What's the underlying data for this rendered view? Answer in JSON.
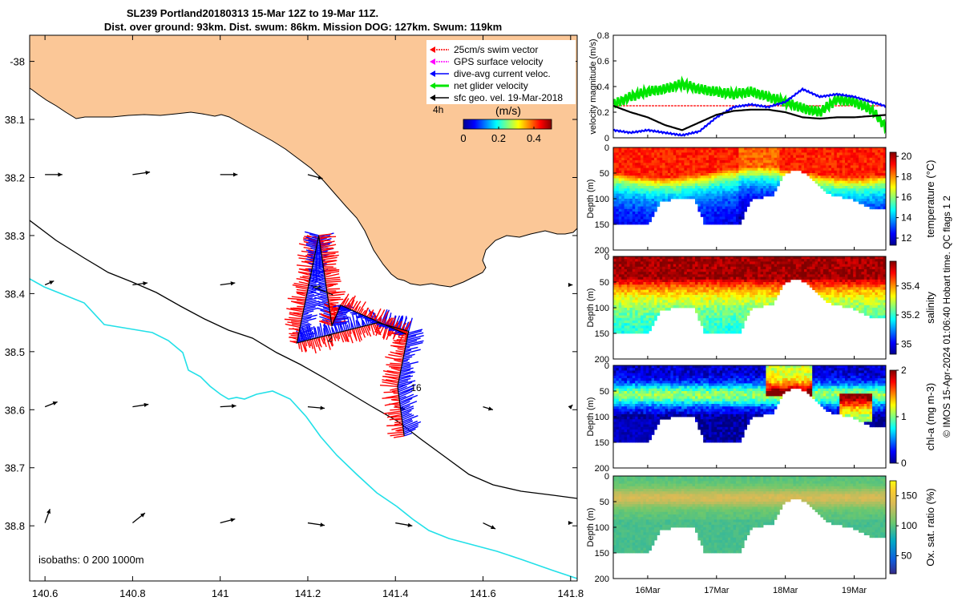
{
  "header": {
    "title_line1": "SL239 Portland20180313 15-Mar 12Z to 19-Mar 11Z.",
    "title_line2": "Dist. over ground: 93km. Dist. swum: 86km. Mission DOG: 127km. Swum: 119km"
  },
  "credit": "© IMOS 15-Apr-2024 01:06:40 Hobart time. QC flags 1  2",
  "colors": {
    "land": "#fbc797",
    "isobath_200": "#000000",
    "isobath_1000": "#22e0e8",
    "swim_vector": "#ff0000",
    "gps_surface": "#ff00ff",
    "dive_avg": "#0000ff",
    "net_glider": "#00e600",
    "sfc_geo": "#000000"
  },
  "chart_data": [
    {
      "type": "map",
      "xlabel_ticks": [
        "140.6",
        "140.8",
        "141",
        "141.2",
        "141.4",
        "141.6",
        "141.8"
      ],
      "ylabel_ticks": [
        "-38",
        "38.1",
        "38.2",
        "38.3",
        "38.4",
        "38.5",
        "38.6",
        "38.7",
        "38.8"
      ],
      "xlim": [
        140.565,
        141.815
      ],
      "ylim": [
        -38.895,
        -37.955
      ],
      "legend": [
        {
          "label": "25cm/s swim vector",
          "color": "#ff0000"
        },
        {
          "label": "GPS surface velocity",
          "color": "#ff00ff"
        },
        {
          "label": "dive-avg current veloc.",
          "color": "#0000ff"
        },
        {
          "label": "net glider velocity",
          "color": "#00e600"
        },
        {
          "label": "sfc geo. vel. 19-Mar-2018",
          "color": "#000000"
        }
      ],
      "legend_placement": "top-right",
      "colorbar": {
        "label": "(m/s)",
        "ticks": [
          "0",
          "0.2",
          "0.4"
        ],
        "range": [
          0,
          0.5
        ],
        "note": "4h"
      },
      "annotations": [
        {
          "text": "2",
          "lon": 141.245,
          "lat": -38.483
        },
        {
          "text": "16",
          "lon": 141.435,
          "lat": -38.568
        }
      ],
      "isobaths_label": "isobaths: 0   200  1000m",
      "glider_track": [
        [
          141.42,
          -38.645
        ],
        [
          141.405,
          -38.56
        ],
        [
          141.43,
          -38.465
        ],
        [
          141.36,
          -38.45
        ],
        [
          141.175,
          -38.485
        ],
        [
          141.225,
          -38.3
        ],
        [
          141.255,
          -38.455
        ],
        [
          141.275,
          -38.42
        ],
        [
          141.35,
          -38.445
        ],
        [
          141.425,
          -38.47
        ]
      ],
      "current_arrows": [
        {
          "lon": 140.6,
          "lat": -38.195,
          "u": 0.035,
          "v": 0.0
        },
        {
          "lon": 140.8,
          "lat": -38.195,
          "u": 0.035,
          "v": 0.005
        },
        {
          "lon": 141.0,
          "lat": -38.195,
          "u": 0.035,
          "v": 0.0
        },
        {
          "lon": 141.2,
          "lat": -38.195,
          "u": 0.03,
          "v": -0.008
        },
        {
          "lon": 140.6,
          "lat": -38.385,
          "u": 0.018,
          "v": 0.008
        },
        {
          "lon": 140.8,
          "lat": -38.385,
          "u": 0.03,
          "v": 0.004
        },
        {
          "lon": 141.0,
          "lat": -38.385,
          "u": 0.03,
          "v": 0.004
        },
        {
          "lon": 141.2,
          "lat": -38.385,
          "u": 0.03,
          "v": -0.006
        },
        {
          "lon": 141.8,
          "lat": -38.385,
          "u": 0.004,
          "v": 0.0
        },
        {
          "lon": 140.6,
          "lat": -38.595,
          "u": 0.025,
          "v": 0.01
        },
        {
          "lon": 140.8,
          "lat": -38.595,
          "u": 0.032,
          "v": 0.005
        },
        {
          "lon": 141.0,
          "lat": -38.595,
          "u": 0.032,
          "v": 0.002
        },
        {
          "lon": 141.2,
          "lat": -38.595,
          "u": 0.034,
          "v": -0.003
        },
        {
          "lon": 141.4,
          "lat": -38.595,
          "u": 0.02,
          "v": -0.005
        },
        {
          "lon": 141.6,
          "lat": -38.595,
          "u": 0.02,
          "v": -0.006
        },
        {
          "lon": 141.8,
          "lat": -38.595,
          "u": 0.004,
          "v": 0.004
        },
        {
          "lon": 140.6,
          "lat": -38.795,
          "u": 0.01,
          "v": 0.028
        },
        {
          "lon": 140.8,
          "lat": -38.795,
          "u": 0.025,
          "v": 0.02
        },
        {
          "lon": 141.0,
          "lat": -38.795,
          "u": 0.03,
          "v": 0.008
        },
        {
          "lon": 141.2,
          "lat": -38.795,
          "u": 0.034,
          "v": -0.005
        },
        {
          "lon": 141.4,
          "lat": -38.795,
          "u": 0.034,
          "v": -0.006
        },
        {
          "lon": 141.6,
          "lat": -38.795,
          "u": 0.025,
          "v": -0.012
        },
        {
          "lon": 141.8,
          "lat": -38.795,
          "u": 0.004,
          "v": 0.0
        }
      ]
    },
    {
      "type": "line",
      "ylabel": "velocity magnitude (m/s)",
      "ylim": [
        0,
        0.8
      ],
      "yticks": [
        "0",
        "0.2",
        "0.4",
        "0.6",
        "0.8"
      ],
      "x_days": [
        15.5,
        15.75,
        16.0,
        16.25,
        16.5,
        16.75,
        17.0,
        17.25,
        17.5,
        17.75,
        18.0,
        18.25,
        18.5,
        18.75,
        19.0,
        19.25,
        19.5
      ],
      "series": [
        {
          "name": "swim vector",
          "color": "#ff0000",
          "values": [
            0.25,
            0.25,
            0.25,
            0.25,
            0.25,
            0.25,
            0.25,
            0.25,
            0.25,
            0.25,
            0.25,
            0.25,
            0.25,
            0.25,
            0.25,
            0.25,
            0.25
          ]
        },
        {
          "name": "net glider velocity",
          "color": "#00e600",
          "values": [
            0.26,
            0.32,
            0.36,
            0.38,
            0.42,
            0.38,
            0.36,
            0.34,
            0.36,
            0.32,
            0.28,
            0.23,
            0.2,
            0.3,
            0.28,
            0.22,
            0.06
          ]
        },
        {
          "name": "dive-avg current",
          "color": "#0000ff",
          "values": [
            0.06,
            0.04,
            0.06,
            0.04,
            0.02,
            0.05,
            0.16,
            0.24,
            0.26,
            0.24,
            0.28,
            0.38,
            0.32,
            0.34,
            0.32,
            0.28,
            0.24
          ]
        },
        {
          "name": "sfc geo",
          "color": "#000000",
          "values": [
            0.25,
            0.2,
            0.16,
            0.1,
            0.06,
            0.12,
            0.18,
            0.21,
            0.22,
            0.22,
            0.2,
            0.16,
            0.15,
            0.16,
            0.16,
            0.17,
            0.18
          ]
        }
      ]
    },
    {
      "type": "heatmap",
      "ylabel": "Depth (m)",
      "colorbar_label": "temperature (°C)",
      "ylim": [
        200,
        0
      ],
      "yticks": [
        "0",
        "50",
        "100",
        "150",
        "200"
      ],
      "cticks": [
        "12",
        "14",
        "16",
        "18",
        "20"
      ],
      "crange": [
        11.3,
        20.4
      ],
      "surface_value": 19.0,
      "bottom_value": 12.0
    },
    {
      "type": "heatmap",
      "ylabel": "Depth (m)",
      "colorbar_label": "salinity",
      "ylim": [
        200,
        0
      ],
      "yticks": [
        "0",
        "50",
        "100",
        "150",
        "200"
      ],
      "cticks": [
        "35",
        "35.2",
        "35.4"
      ],
      "crange": [
        34.93,
        35.57
      ],
      "surface_value": 35.55,
      "bottom_value": 35.15
    },
    {
      "type": "heatmap",
      "ylabel": "Depth (m)",
      "colorbar_label": "chl-a (mg m-3)",
      "ylim": [
        200,
        0
      ],
      "yticks": [
        "0",
        "50",
        "100",
        "150",
        "200"
      ],
      "cticks": [
        "0",
        "1",
        "2"
      ],
      "crange": [
        0,
        2
      ],
      "surface_value": 0.8,
      "bottom_value": 0.05
    },
    {
      "type": "heatmap",
      "ylabel": "Depth (m)",
      "colorbar_label": "Ox. sat. ratio (%)",
      "ylim": [
        200,
        0
      ],
      "yticks": [
        "0",
        "50",
        "100",
        "150",
        "200"
      ],
      "cticks": [
        "50",
        "100",
        "150"
      ],
      "crange": [
        20,
        175
      ],
      "surface_value": 115,
      "bottom_value": 92
    }
  ],
  "time_axis": {
    "ticks": [
      "16Mar",
      "17Mar",
      "18Mar",
      "19Mar"
    ],
    "xlim_days": [
      15.5,
      19.46
    ],
    "max_depth_profile": [
      150,
      150,
      150,
      148,
      105,
      100,
      100,
      100,
      150,
      150,
      150,
      150,
      100,
      95,
      90,
      50,
      40,
      50,
      75,
      90,
      95,
      100,
      110,
      120,
      120
    ]
  }
}
